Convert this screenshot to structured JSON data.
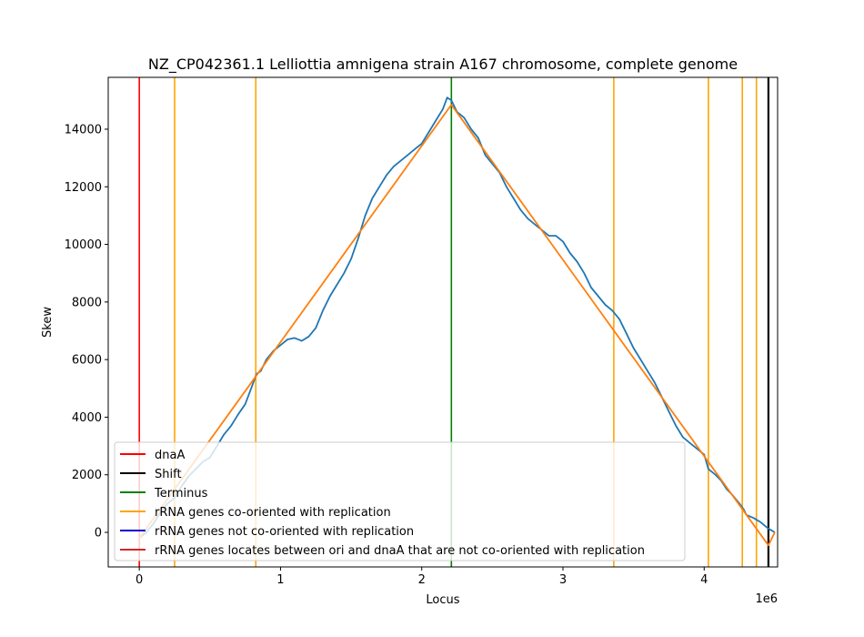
{
  "chart_data": {
    "type": "line",
    "title": "NZ_CP042361.1 Lelliottia amnigena strain A167 chromosome, complete genome",
    "xlabel": "Locus",
    "ylabel": "Skew",
    "x_offset_label": "1e6",
    "xlim": [
      -0.22,
      4.52
    ],
    "ylim": [
      -1200,
      15800
    ],
    "x_ticks": [
      0,
      1,
      2,
      3,
      4
    ],
    "x_tick_labels": [
      "0",
      "1",
      "2",
      "3",
      "4"
    ],
    "y_ticks": [
      0,
      2000,
      4000,
      6000,
      8000,
      10000,
      12000,
      14000
    ],
    "y_tick_labels": [
      "0",
      "2000",
      "4000",
      "6000",
      "8000",
      "10000",
      "12000",
      "14000"
    ],
    "grid": false,
    "legend_position": "lower-left",
    "colors": {
      "skew": "#1f77b4",
      "fit": "#ff7f0e",
      "dnaA": "#ff0000",
      "shift": "#000000",
      "terminus": "#008000",
      "rrna_co": "#ffa500",
      "rrna_not_co": "#0000cd",
      "rrna_between": "#d62728"
    },
    "legend": [
      {
        "label": "dnaA",
        "color": "#ff0000"
      },
      {
        "label": "Shift",
        "color": "#000000"
      },
      {
        "label": "Terminus",
        "color": "#008000"
      },
      {
        "label": "rRNA genes co-oriented with replication",
        "color": "#ffa500"
      },
      {
        "label": "rRNA genes not co-oriented with replication",
        "color": "#0000cd"
      },
      {
        "label": "rRNA genes locates between ori and dnaA that are not co-oriented with replication",
        "color": "#d62728"
      }
    ],
    "vlines": {
      "dnaA": [
        0.0
      ],
      "shift": [
        4.455
      ],
      "terminus": [
        2.21
      ],
      "rrna_co": [
        0.25,
        0.825,
        3.36,
        4.03,
        4.27,
        4.37
      ]
    },
    "series": [
      {
        "key": "skew",
        "points": [
          [
            0.0,
            -200
          ],
          [
            0.05,
            0
          ],
          [
            0.1,
            300
          ],
          [
            0.15,
            700
          ],
          [
            0.2,
            1000
          ],
          [
            0.25,
            1200
          ],
          [
            0.3,
            1600
          ],
          [
            0.35,
            1950
          ],
          [
            0.4,
            2200
          ],
          [
            0.45,
            2450
          ],
          [
            0.5,
            2600
          ],
          [
            0.55,
            3000
          ],
          [
            0.6,
            3400
          ],
          [
            0.65,
            3700
          ],
          [
            0.7,
            4100
          ],
          [
            0.75,
            4450
          ],
          [
            0.8,
            5100
          ],
          [
            0.83,
            5500
          ],
          [
            0.86,
            5600
          ],
          [
            0.9,
            6000
          ],
          [
            0.95,
            6300
          ],
          [
            1.0,
            6500
          ],
          [
            1.05,
            6700
          ],
          [
            1.1,
            6750
          ],
          [
            1.15,
            6650
          ],
          [
            1.2,
            6800
          ],
          [
            1.25,
            7100
          ],
          [
            1.3,
            7700
          ],
          [
            1.35,
            8200
          ],
          [
            1.4,
            8600
          ],
          [
            1.45,
            9000
          ],
          [
            1.5,
            9500
          ],
          [
            1.55,
            10200
          ],
          [
            1.6,
            11000
          ],
          [
            1.65,
            11600
          ],
          [
            1.7,
            12000
          ],
          [
            1.75,
            12400
          ],
          [
            1.8,
            12700
          ],
          [
            1.85,
            12900
          ],
          [
            1.9,
            13100
          ],
          [
            1.95,
            13300
          ],
          [
            2.0,
            13500
          ],
          [
            2.05,
            13900
          ],
          [
            2.1,
            14300
          ],
          [
            2.15,
            14700
          ],
          [
            2.18,
            15100
          ],
          [
            2.21,
            15000
          ],
          [
            2.25,
            14600
          ],
          [
            2.3,
            14400
          ],
          [
            2.35,
            14000
          ],
          [
            2.4,
            13700
          ],
          [
            2.45,
            13100
          ],
          [
            2.5,
            12800
          ],
          [
            2.55,
            12500
          ],
          [
            2.6,
            12000
          ],
          [
            2.65,
            11600
          ],
          [
            2.7,
            11200
          ],
          [
            2.75,
            10900
          ],
          [
            2.8,
            10700
          ],
          [
            2.85,
            10500
          ],
          [
            2.9,
            10300
          ],
          [
            2.95,
            10300
          ],
          [
            3.0,
            10100
          ],
          [
            3.05,
            9700
          ],
          [
            3.1,
            9400
          ],
          [
            3.15,
            9000
          ],
          [
            3.2,
            8500
          ],
          [
            3.25,
            8200
          ],
          [
            3.3,
            7900
          ],
          [
            3.35,
            7700
          ],
          [
            3.4,
            7400
          ],
          [
            3.45,
            6900
          ],
          [
            3.5,
            6400
          ],
          [
            3.55,
            6000
          ],
          [
            3.6,
            5600
          ],
          [
            3.65,
            5200
          ],
          [
            3.7,
            4700
          ],
          [
            3.75,
            4200
          ],
          [
            3.8,
            3700
          ],
          [
            3.85,
            3300
          ],
          [
            3.9,
            3100
          ],
          [
            3.95,
            2900
          ],
          [
            4.0,
            2700
          ],
          [
            4.03,
            2200
          ],
          [
            4.08,
            2000
          ],
          [
            4.12,
            1800
          ],
          [
            4.16,
            1500
          ],
          [
            4.2,
            1300
          ],
          [
            4.25,
            1000
          ],
          [
            4.28,
            800
          ],
          [
            4.3,
            600
          ],
          [
            4.35,
            500
          ],
          [
            4.4,
            350
          ],
          [
            4.45,
            150
          ],
          [
            4.5,
            0
          ]
        ]
      },
      {
        "key": "fit",
        "points": [
          [
            0.0,
            -200
          ],
          [
            2.21,
            14850
          ],
          [
            4.455,
            -450
          ],
          [
            4.5,
            0
          ]
        ]
      }
    ]
  }
}
